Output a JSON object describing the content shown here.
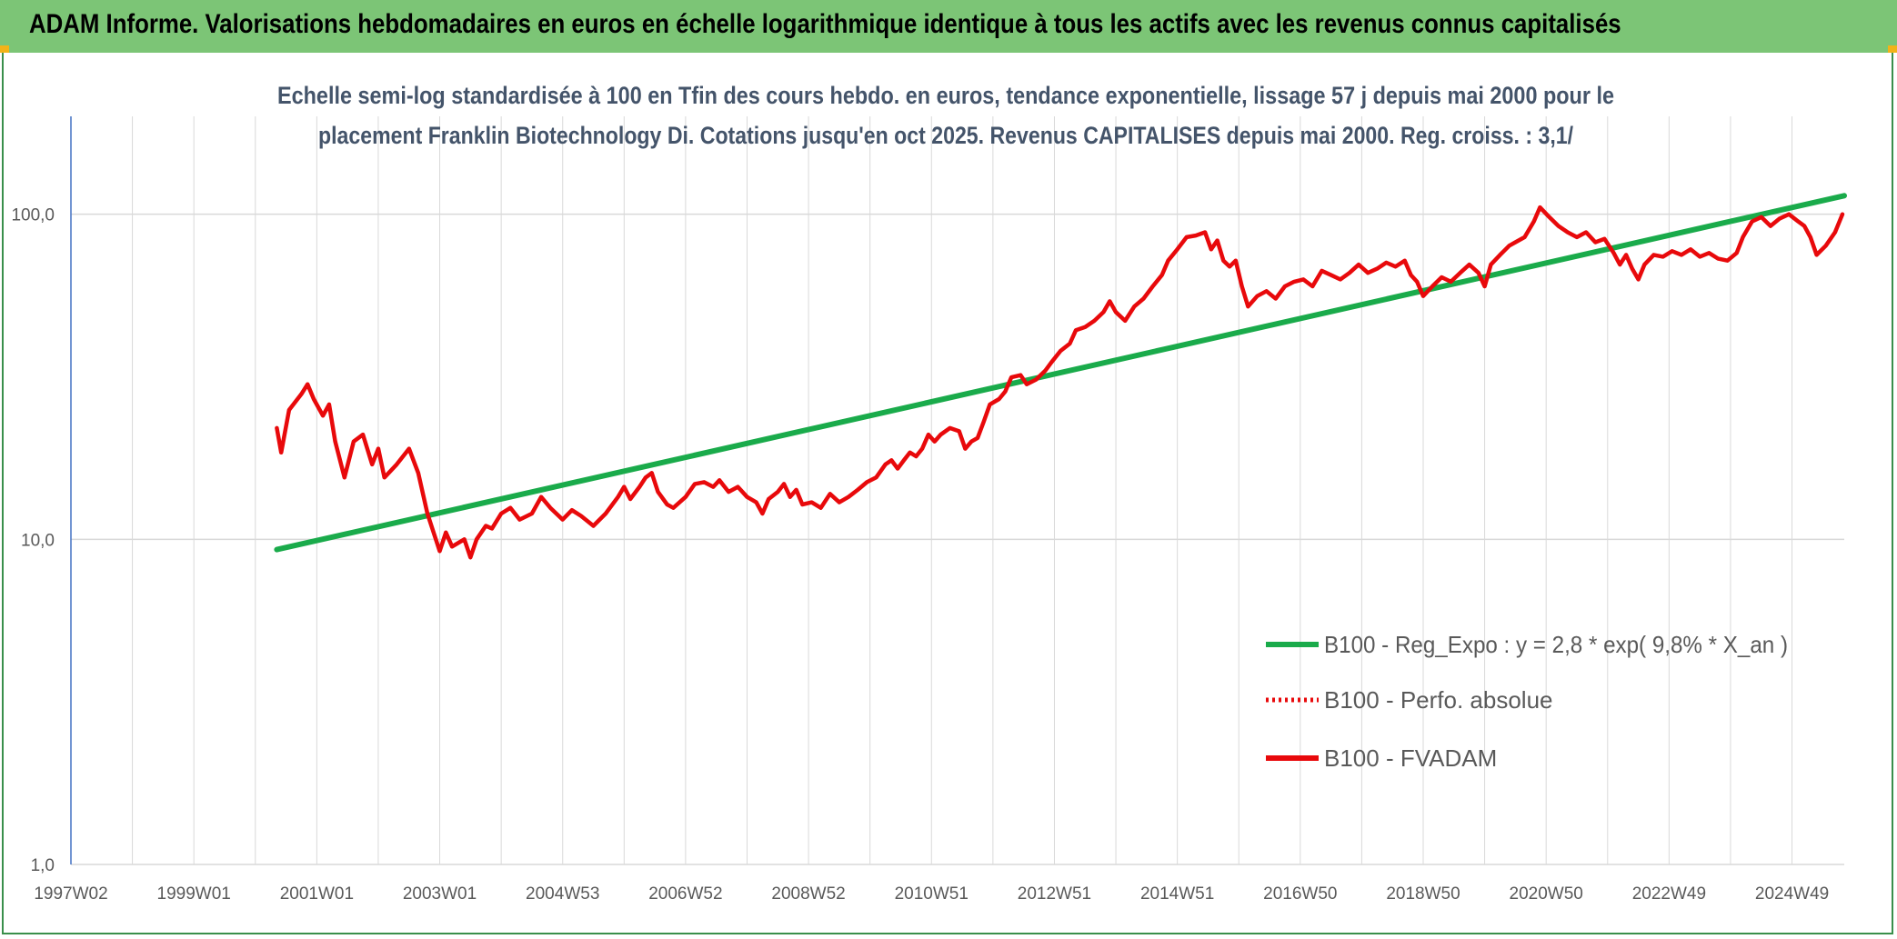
{
  "header": {
    "title": "ADAM Informe. Valorisations hebdomadaires en euros en échelle logarithmique identique à tous les actifs avec les revenus connus capitalisés"
  },
  "colors": {
    "banner": "#7cc576",
    "trend": "#1aab4b",
    "fvadam": "#e8090b",
    "grid": "#d9d9d9",
    "axis": "#4472c4"
  },
  "chart_data": {
    "type": "line",
    "scale": "log",
    "title_lines": [
      "Echelle semi-log standardisée à 100 en Tfin des cours hebdo. en euros, tendance exponentielle, lissage 57 j depuis mai 2000 pour le",
      "placement Franklin Biotechnology Di. Cotations jusqu'en oct 2025. Revenus CAPITALISES depuis mai 2000. Reg. croiss. : 3,1/"
    ],
    "x_range": [
      1997.0,
      2025.85
    ],
    "ylim": [
      1,
      200
    ],
    "y_ticks": [
      {
        "value": 1,
        "label": "1,0"
      },
      {
        "value": 10,
        "label": "10,0"
      },
      {
        "value": 100,
        "label": "100,0"
      }
    ],
    "x_ticks": [
      {
        "x": 1997.0,
        "label": "1997W02"
      },
      {
        "x": 1999.0,
        "label": "1999W01"
      },
      {
        "x": 2001.0,
        "label": "2001W01"
      },
      {
        "x": 2003.0,
        "label": "2003W01"
      },
      {
        "x": 2005.0,
        "label": "2004W53"
      },
      {
        "x": 2007.0,
        "label": "2006W52"
      },
      {
        "x": 2009.0,
        "label": "2008W52"
      },
      {
        "x": 2011.0,
        "label": "2010W51"
      },
      {
        "x": 2013.0,
        "label": "2012W51"
      },
      {
        "x": 2015.0,
        "label": "2014W51"
      },
      {
        "x": 2017.0,
        "label": "2016W50"
      },
      {
        "x": 2019.0,
        "label": "2018W50"
      },
      {
        "x": 2021.0,
        "label": "2020W50"
      },
      {
        "x": 2023.0,
        "label": "2022W49"
      },
      {
        "x": 2025.0,
        "label": "2024W49"
      }
    ],
    "minor_grid_step_years": 1,
    "series": [
      {
        "name": "B100 - Reg_Expo : y = 2,8 * exp( 9,8% *  X_an )",
        "style": "solid",
        "color": "#1aab4b",
        "points": [
          [
            2000.35,
            9.3
          ],
          [
            2025.85,
            114
          ]
        ]
      },
      {
        "name": "B100 - Perfo. absolue",
        "style": "dotted",
        "color": "#e8090b",
        "points": []
      },
      {
        "name": "B100 - FVADAM",
        "style": "solid",
        "color": "#e8090b",
        "points": [
          [
            2000.35,
            22
          ],
          [
            2000.42,
            18.5
          ],
          [
            2000.55,
            25
          ],
          [
            2000.75,
            28
          ],
          [
            2000.85,
            30
          ],
          [
            2000.95,
            27
          ],
          [
            2001.1,
            24
          ],
          [
            2001.2,
            26
          ],
          [
            2001.3,
            20
          ],
          [
            2001.45,
            15.5
          ],
          [
            2001.6,
            20
          ],
          [
            2001.75,
            21
          ],
          [
            2001.9,
            17
          ],
          [
            2002.0,
            19
          ],
          [
            2002.1,
            15.5
          ],
          [
            2002.3,
            17
          ],
          [
            2002.5,
            19
          ],
          [
            2002.65,
            16
          ],
          [
            2002.8,
            12
          ],
          [
            2002.9,
            10.5
          ],
          [
            2003.0,
            9.2
          ],
          [
            2003.1,
            10.5
          ],
          [
            2003.2,
            9.5
          ],
          [
            2003.4,
            10
          ],
          [
            2003.5,
            8.8
          ],
          [
            2003.6,
            10
          ],
          [
            2003.75,
            11
          ],
          [
            2003.85,
            10.8
          ],
          [
            2004.0,
            12
          ],
          [
            2004.15,
            12.5
          ],
          [
            2004.3,
            11.5
          ],
          [
            2004.5,
            12
          ],
          [
            2004.65,
            13.5
          ],
          [
            2004.8,
            12.5
          ],
          [
            2005.0,
            11.5
          ],
          [
            2005.15,
            12.3
          ],
          [
            2005.3,
            11.8
          ],
          [
            2005.5,
            11
          ],
          [
            2005.7,
            12
          ],
          [
            2005.9,
            13.5
          ],
          [
            2006.0,
            14.5
          ],
          [
            2006.1,
            13.3
          ],
          [
            2006.25,
            14.5
          ],
          [
            2006.35,
            15.5
          ],
          [
            2006.45,
            16
          ],
          [
            2006.55,
            14
          ],
          [
            2006.7,
            12.8
          ],
          [
            2006.8,
            12.5
          ],
          [
            2007.0,
            13.5
          ],
          [
            2007.15,
            14.8
          ],
          [
            2007.3,
            15
          ],
          [
            2007.45,
            14.5
          ],
          [
            2007.55,
            15.2
          ],
          [
            2007.7,
            14
          ],
          [
            2007.85,
            14.5
          ],
          [
            2008.0,
            13.5
          ],
          [
            2008.15,
            13
          ],
          [
            2008.25,
            12
          ],
          [
            2008.35,
            13.3
          ],
          [
            2008.5,
            14
          ],
          [
            2008.6,
            14.8
          ],
          [
            2008.7,
            13.5
          ],
          [
            2008.8,
            14.2
          ],
          [
            2008.9,
            12.8
          ],
          [
            2009.05,
            13
          ],
          [
            2009.2,
            12.5
          ],
          [
            2009.35,
            13.8
          ],
          [
            2009.5,
            13
          ],
          [
            2009.65,
            13.5
          ],
          [
            2009.8,
            14.2
          ],
          [
            2009.95,
            15
          ],
          [
            2010.1,
            15.5
          ],
          [
            2010.25,
            17
          ],
          [
            2010.35,
            17.5
          ],
          [
            2010.45,
            16.5
          ],
          [
            2010.55,
            17.5
          ],
          [
            2010.65,
            18.5
          ],
          [
            2010.75,
            18
          ],
          [
            2010.85,
            19
          ],
          [
            2010.95,
            21
          ],
          [
            2011.05,
            20
          ],
          [
            2011.15,
            21
          ],
          [
            2011.3,
            22
          ],
          [
            2011.45,
            21.5
          ],
          [
            2011.55,
            19
          ],
          [
            2011.65,
            20
          ],
          [
            2011.75,
            20.5
          ],
          [
            2011.85,
            23
          ],
          [
            2011.95,
            26
          ],
          [
            2012.1,
            27
          ],
          [
            2012.2,
            28.5
          ],
          [
            2012.3,
            31.5
          ],
          [
            2012.45,
            32
          ],
          [
            2012.55,
            30
          ],
          [
            2012.7,
            31
          ],
          [
            2012.85,
            33
          ],
          [
            2012.95,
            35
          ],
          [
            2013.1,
            38
          ],
          [
            2013.25,
            40
          ],
          [
            2013.35,
            44
          ],
          [
            2013.5,
            45
          ],
          [
            2013.65,
            47
          ],
          [
            2013.8,
            50
          ],
          [
            2013.9,
            54
          ],
          [
            2014.0,
            50
          ],
          [
            2014.15,
            47
          ],
          [
            2014.3,
            52
          ],
          [
            2014.45,
            55
          ],
          [
            2014.6,
            60
          ],
          [
            2014.75,
            65
          ],
          [
            2014.85,
            72
          ],
          [
            2015.0,
            78
          ],
          [
            2015.15,
            85
          ],
          [
            2015.3,
            86
          ],
          [
            2015.45,
            88
          ],
          [
            2015.55,
            78
          ],
          [
            2015.65,
            83
          ],
          [
            2015.75,
            72
          ],
          [
            2015.85,
            69
          ],
          [
            2015.95,
            72
          ],
          [
            2016.05,
            60
          ],
          [
            2016.15,
            52
          ],
          [
            2016.3,
            56
          ],
          [
            2016.45,
            58
          ],
          [
            2016.6,
            55
          ],
          [
            2016.75,
            60
          ],
          [
            2016.9,
            62
          ],
          [
            2017.05,
            63
          ],
          [
            2017.2,
            60
          ],
          [
            2017.35,
            67
          ],
          [
            2017.5,
            65
          ],
          [
            2017.65,
            63
          ],
          [
            2017.8,
            66
          ],
          [
            2017.95,
            70
          ],
          [
            2018.1,
            66
          ],
          [
            2018.25,
            68
          ],
          [
            2018.4,
            71
          ],
          [
            2018.55,
            69
          ],
          [
            2018.7,
            72
          ],
          [
            2018.8,
            65
          ],
          [
            2018.9,
            62
          ],
          [
            2019.0,
            56
          ],
          [
            2019.15,
            60
          ],
          [
            2019.3,
            64
          ],
          [
            2019.45,
            62
          ],
          [
            2019.6,
            66
          ],
          [
            2019.75,
            70
          ],
          [
            2019.9,
            66
          ],
          [
            2020.0,
            60
          ],
          [
            2020.1,
            70
          ],
          [
            2020.25,
            75
          ],
          [
            2020.4,
            80
          ],
          [
            2020.5,
            82
          ],
          [
            2020.65,
            85
          ],
          [
            2020.8,
            95
          ],
          [
            2020.9,
            105
          ],
          [
            2021.05,
            98
          ],
          [
            2021.2,
            92
          ],
          [
            2021.35,
            88
          ],
          [
            2021.5,
            85
          ],
          [
            2021.65,
            88
          ],
          [
            2021.8,
            82
          ],
          [
            2021.95,
            84
          ],
          [
            2022.1,
            76
          ],
          [
            2022.2,
            70
          ],
          [
            2022.3,
            75
          ],
          [
            2022.4,
            68
          ],
          [
            2022.5,
            63
          ],
          [
            2022.6,
            70
          ],
          [
            2022.75,
            75
          ],
          [
            2022.9,
            74
          ],
          [
            2023.05,
            77
          ],
          [
            2023.2,
            75
          ],
          [
            2023.35,
            78
          ],
          [
            2023.5,
            74
          ],
          [
            2023.65,
            76
          ],
          [
            2023.8,
            73
          ],
          [
            2023.95,
            72
          ],
          [
            2024.1,
            76
          ],
          [
            2024.2,
            85
          ],
          [
            2024.35,
            95
          ],
          [
            2024.5,
            98
          ],
          [
            2024.65,
            92
          ],
          [
            2024.8,
            97
          ],
          [
            2024.95,
            100
          ],
          [
            2025.1,
            95
          ],
          [
            2025.2,
            92
          ],
          [
            2025.3,
            85
          ],
          [
            2025.4,
            75
          ],
          [
            2025.55,
            80
          ],
          [
            2025.7,
            88
          ],
          [
            2025.82,
            100
          ]
        ]
      }
    ]
  }
}
